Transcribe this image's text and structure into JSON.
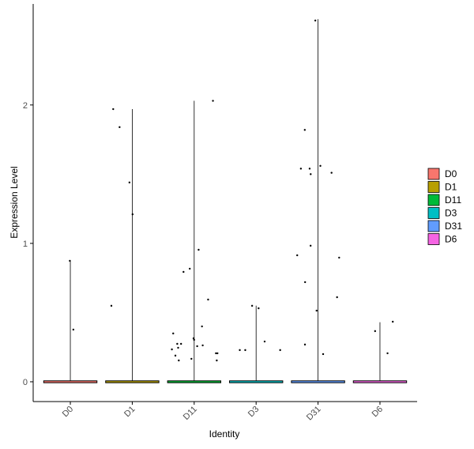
{
  "chart_data": {
    "type": "violin",
    "x_label": "Identity",
    "y_label": "Expression Level",
    "categories": [
      "D0",
      "D1",
      "D11",
      "D3",
      "D31",
      "D6"
    ],
    "ylim": [
      -0.143,
      2.73
    ],
    "yticks": [
      0,
      1,
      2
    ],
    "series": [
      {
        "name": "D0",
        "color": "#F8766D",
        "max": 0.87,
        "points": [
          0.874,
          0.377
        ]
      },
      {
        "name": "D1",
        "color": "#B79F00",
        "max": 1.97,
        "points": [
          1.97,
          1.84,
          1.44,
          1.21,
          0.549
        ]
      },
      {
        "name": "D11",
        "color": "#00BA38",
        "max": 2.03,
        "points": [
          2.03,
          0.954,
          0.817,
          0.794,
          0.594,
          0.4,
          0.349,
          0.303,
          0.274,
          0.263,
          0.274,
          0.257,
          0.314,
          0.246,
          0.234,
          0.206,
          0.206,
          0.189,
          0.166,
          0.154,
          0.154
        ]
      },
      {
        "name": "D3",
        "color": "#00BFC4",
        "max": 0.55,
        "points": [
          0.549,
          0.531,
          0.291,
          0.229,
          0.229,
          0.229
        ]
      },
      {
        "name": "D31",
        "color": "#619CFF",
        "max": 2.62,
        "points": [
          2.61,
          1.82,
          1.56,
          1.54,
          1.54,
          1.51,
          1.5,
          0.983,
          0.914,
          0.897,
          0.72,
          0.611,
          0.514,
          0.269,
          0.2
        ]
      },
      {
        "name": "D6",
        "color": "#F564E3",
        "max": 0.43,
        "points": [
          0.366,
          0.434,
          0.206
        ]
      }
    ]
  }
}
